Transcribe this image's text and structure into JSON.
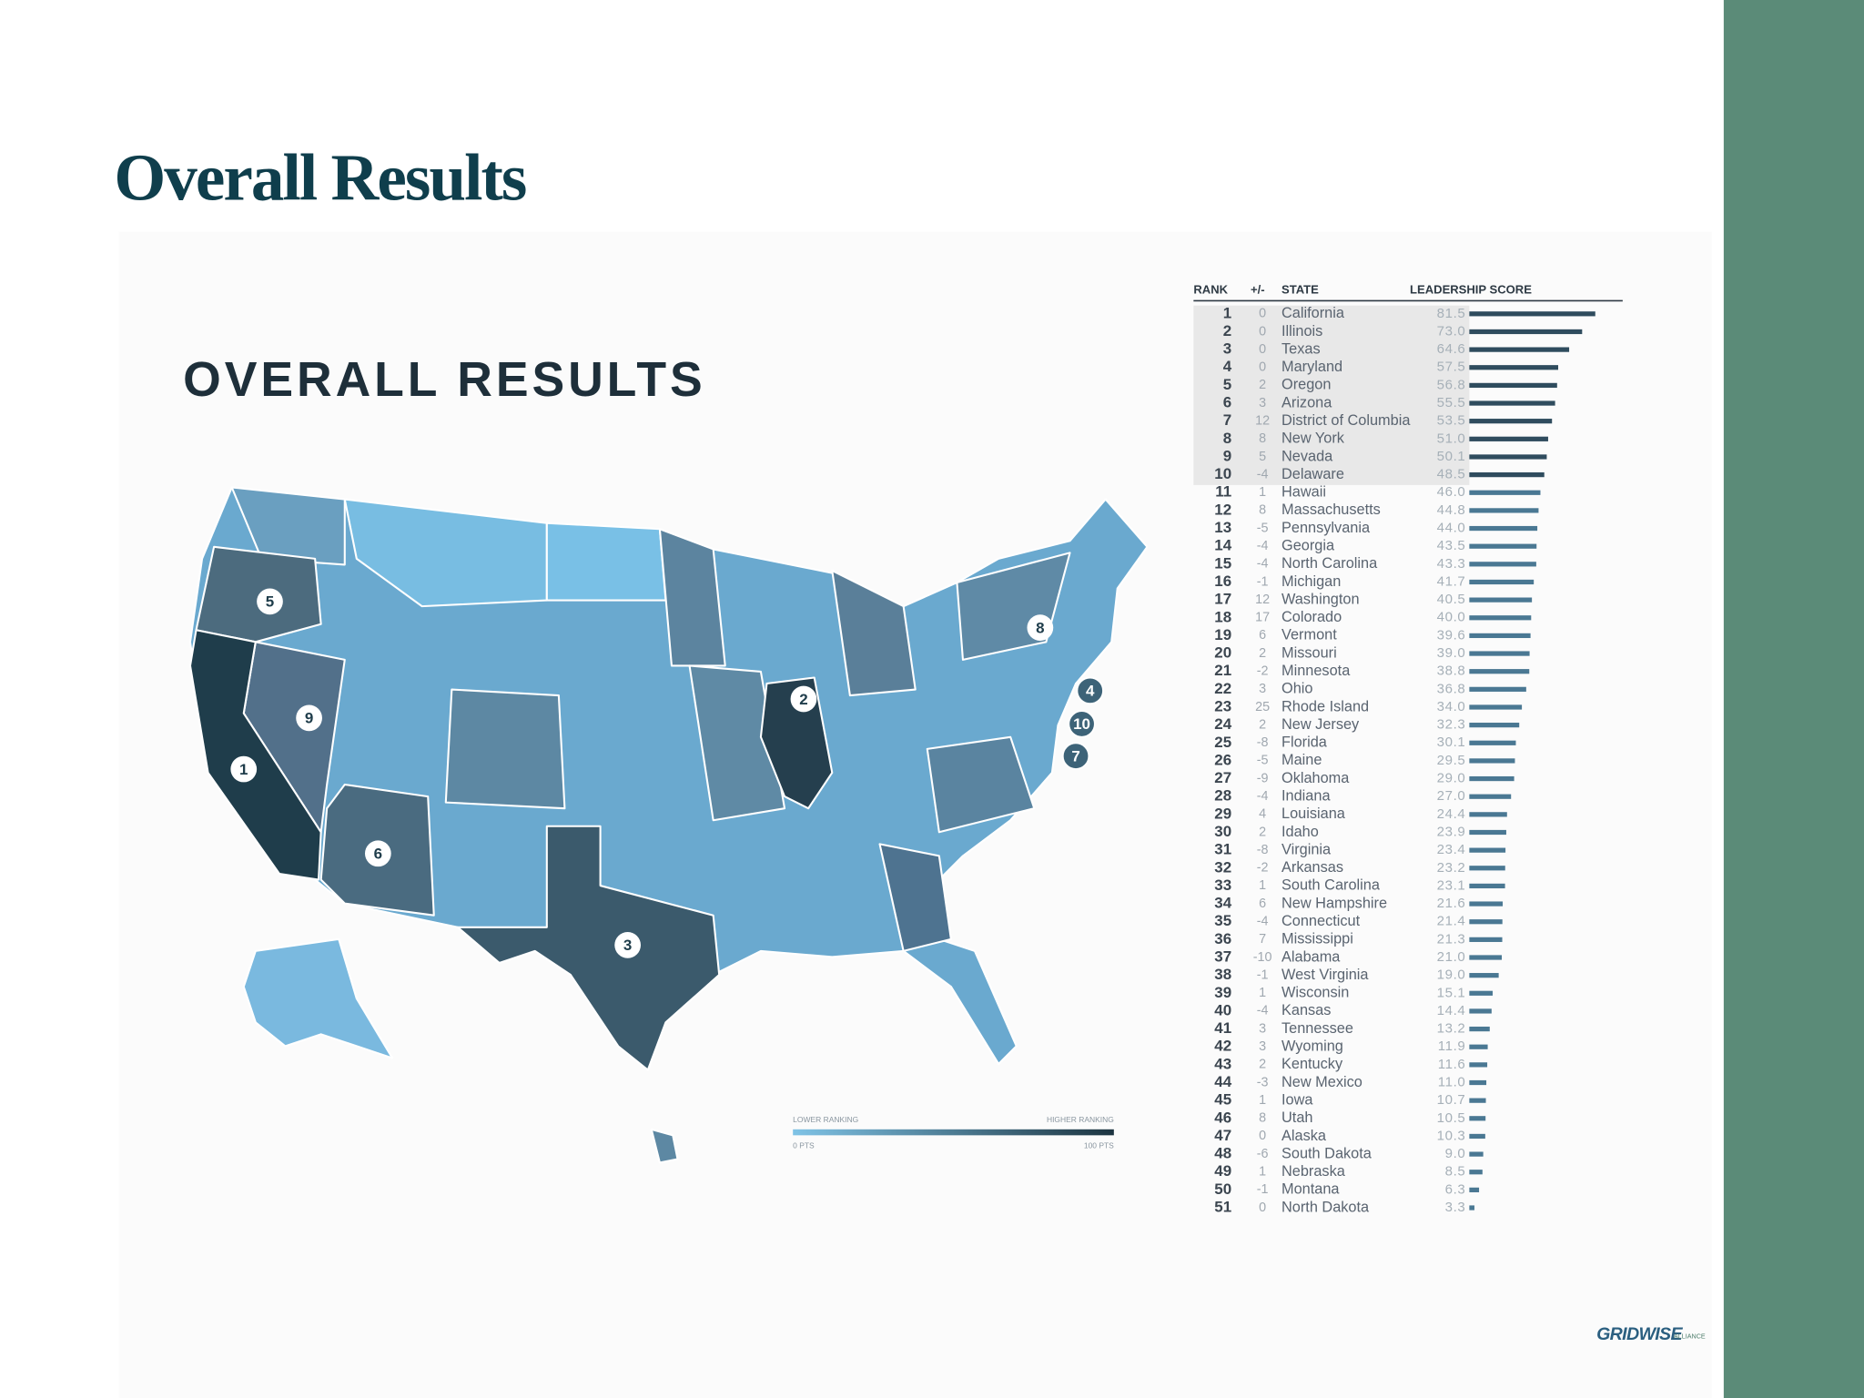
{
  "header": {
    "title": "Overall Results"
  },
  "map": {
    "title": "OVERALL RESULTS",
    "markers": [
      1,
      2,
      3,
      4,
      5,
      6,
      7,
      8,
      9,
      10
    ],
    "legend": {
      "low_label": "LOWER RANKING",
      "high_label": "HIGHER RANKING",
      "min_label": "0 PTS",
      "max_label": "100 PTS"
    }
  },
  "table": {
    "columns": [
      "RANK",
      "+/-",
      "STATE",
      "LEADERSHIP SCORE"
    ],
    "rows": [
      [
        1,
        0,
        "California",
        "81.5"
      ],
      [
        2,
        0,
        "Illinois",
        "73.0"
      ],
      [
        3,
        0,
        "Texas",
        "64.6"
      ],
      [
        4,
        0,
        "Maryland",
        "57.5"
      ],
      [
        5,
        2,
        "Oregon",
        "56.8"
      ],
      [
        6,
        3,
        "Arizona",
        "55.5"
      ],
      [
        7,
        12,
        "District of Columbia",
        "53.5"
      ],
      [
        8,
        8,
        "New York",
        "51.0"
      ],
      [
        9,
        5,
        "Nevada",
        "50.1"
      ],
      [
        10,
        -4,
        "Delaware",
        "48.5"
      ],
      [
        11,
        1,
        "Hawaii",
        "46.0"
      ],
      [
        12,
        8,
        "Massachusetts",
        "44.8"
      ],
      [
        13,
        -5,
        "Pennsylvania",
        "44.0"
      ],
      [
        14,
        -4,
        "Georgia",
        "43.5"
      ],
      [
        15,
        -4,
        "North Carolina",
        "43.3"
      ],
      [
        16,
        -1,
        "Michigan",
        "41.7"
      ],
      [
        17,
        12,
        "Washington",
        "40.5"
      ],
      [
        18,
        17,
        "Colorado",
        "40.0"
      ],
      [
        19,
        6,
        "Vermont",
        "39.6"
      ],
      [
        20,
        2,
        "Missouri",
        "39.0"
      ],
      [
        21,
        -2,
        "Minnesota",
        "38.8"
      ],
      [
        22,
        3,
        "Ohio",
        "36.8"
      ],
      [
        23,
        25,
        "Rhode Island",
        "34.0"
      ],
      [
        24,
        2,
        "New Jersey",
        "32.3"
      ],
      [
        25,
        -8,
        "Florida",
        "30.1"
      ],
      [
        26,
        -5,
        "Maine",
        "29.5"
      ],
      [
        27,
        -9,
        "Oklahoma",
        "29.0"
      ],
      [
        28,
        -4,
        "Indiana",
        "27.0"
      ],
      [
        29,
        4,
        "Louisiana",
        "24.4"
      ],
      [
        30,
        2,
        "Idaho",
        "23.9"
      ],
      [
        31,
        -8,
        "Virginia",
        "23.4"
      ],
      [
        32,
        -2,
        "Arkansas",
        "23.2"
      ],
      [
        33,
        1,
        "South Carolina",
        "23.1"
      ],
      [
        34,
        6,
        "New Hampshire",
        "21.6"
      ],
      [
        35,
        -4,
        "Connecticut",
        "21.4"
      ],
      [
        36,
        7,
        "Mississippi",
        "21.3"
      ],
      [
        37,
        -10,
        "Alabama",
        "21.0"
      ],
      [
        38,
        -1,
        "West Virginia",
        "19.0"
      ],
      [
        39,
        1,
        "Wisconsin",
        "15.1"
      ],
      [
        40,
        -4,
        "Kansas",
        "14.4"
      ],
      [
        41,
        3,
        "Tennessee",
        "13.2"
      ],
      [
        42,
        3,
        "Wyoming",
        "11.9"
      ],
      [
        43,
        2,
        "Kentucky",
        "11.6"
      ],
      [
        44,
        -3,
        "New Mexico",
        "11.0"
      ],
      [
        45,
        1,
        "Iowa",
        "10.7"
      ],
      [
        46,
        8,
        "Utah",
        "10.5"
      ],
      [
        47,
        0,
        "Alaska",
        "10.3"
      ],
      [
        48,
        -6,
        "South Dakota",
        "9.0"
      ],
      [
        49,
        1,
        "Nebraska",
        "8.5"
      ],
      [
        50,
        -1,
        "Montana",
        "6.3"
      ],
      [
        51,
        0,
        "North Dakota",
        "3.3"
      ]
    ]
  },
  "logo": {
    "name": "GRIDWISE",
    "suffix": "ALLIANCE"
  }
}
